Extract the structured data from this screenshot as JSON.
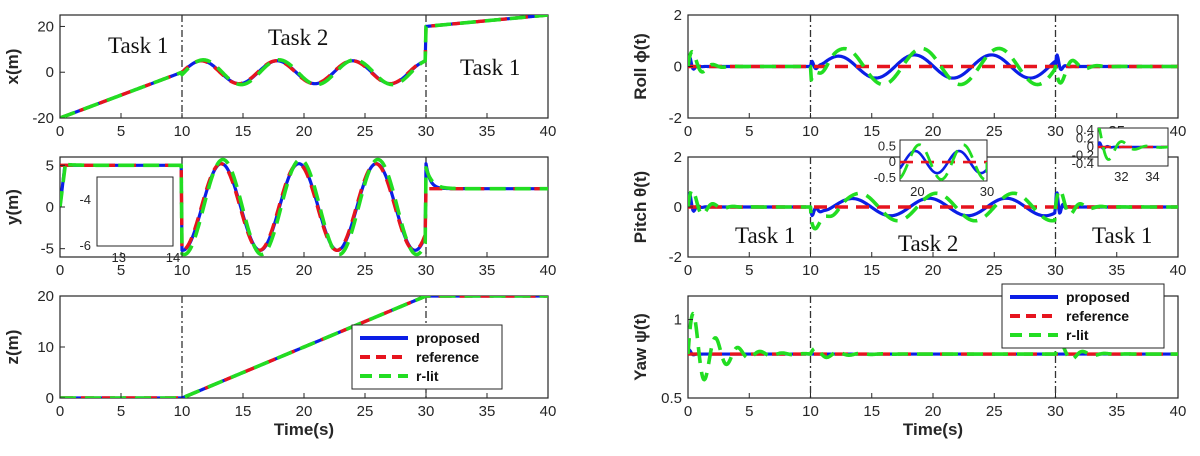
{
  "legend": [
    "proposed",
    "reference",
    "r-lit"
  ],
  "colors": {
    "proposed": "#0b1ee6",
    "reference": "#e6141e",
    "rlit": "#22dd22"
  },
  "chart_data": [
    {
      "id": "x",
      "type": "line",
      "ylabel": "x(m)",
      "xlim": [
        0,
        40
      ],
      "ylim": [
        -20,
        25
      ],
      "xticks": [
        0,
        5,
        10,
        15,
        20,
        25,
        30,
        35,
        40
      ],
      "yticks": [
        -20,
        0,
        20
      ],
      "tasks": [
        "Task 1",
        "Task 2",
        "Task 1"
      ],
      "switch_times": [
        10,
        30
      ]
    },
    {
      "id": "y",
      "type": "line",
      "ylabel": "y(m)",
      "xlim": [
        0,
        40
      ],
      "ylim": [
        -6,
        6
      ],
      "xticks": [
        0,
        5,
        10,
        15,
        20,
        25,
        30,
        35,
        40
      ],
      "yticks": [
        -5,
        0,
        5
      ],
      "switch_times": [
        10,
        30
      ],
      "inset": {
        "xlim": [
          12.6,
          14
        ],
        "ylim": [
          -6,
          -3
        ],
        "xticks": [
          13,
          14
        ],
        "yticks": [
          -4,
          -6
        ]
      }
    },
    {
      "id": "z",
      "type": "line",
      "ylabel": "z(m)",
      "xlabel": "Time(s)",
      "xlim": [
        0,
        40
      ],
      "ylim": [
        0,
        20
      ],
      "xticks": [
        0,
        5,
        10,
        15,
        20,
        25,
        30,
        35,
        40
      ],
      "yticks": [
        0,
        10,
        20
      ],
      "switch_times": [
        10,
        30
      ]
    },
    {
      "id": "roll",
      "type": "line",
      "ylabel": "Roll ϕ(t)",
      "xlim": [
        0,
        40
      ],
      "ylim": [
        -2,
        2
      ],
      "xticks": [
        0,
        5,
        10,
        15,
        20,
        25,
        30,
        35,
        40
      ],
      "yticks": [
        -2,
        0,
        2
      ],
      "switch_times": [
        10,
        30
      ]
    },
    {
      "id": "pitch",
      "type": "line",
      "ylabel": "Pitch θ(t)",
      "xlim": [
        0,
        40
      ],
      "ylim": [
        -2,
        2
      ],
      "xticks": [
        0,
        5,
        10,
        15,
        20,
        25,
        30,
        35,
        40
      ],
      "yticks": [
        -2,
        0,
        2
      ],
      "tasks": [
        "Task 1",
        "Task 2",
        "Task 1"
      ],
      "switch_times": [
        10,
        30
      ],
      "insets": [
        {
          "xlim": [
            17.5,
            30
          ],
          "ylim": [
            -0.6,
            0.7
          ],
          "xticks": [
            20,
            30
          ],
          "yticks": [
            0.5,
            0,
            -0.5
          ]
        },
        {
          "xlim": [
            30.5,
            35
          ],
          "ylim": [
            -0.45,
            0.45
          ],
          "xticks": [
            32,
            34
          ],
          "yticks": [
            0.4,
            0.2,
            0,
            -0.2,
            -0.4
          ]
        }
      ]
    },
    {
      "id": "yaw",
      "type": "line",
      "ylabel": "Yaw ψ(t)",
      "xlabel": "Time(s)",
      "xlim": [
        0,
        40
      ],
      "ylim": [
        0.5,
        1.15
      ],
      "xticks": [
        0,
        5,
        10,
        15,
        20,
        25,
        30,
        35,
        40
      ],
      "yticks": [
        0.5,
        1
      ],
      "switch_times": [
        10,
        30
      ],
      "steady_value": 0.78
    }
  ]
}
